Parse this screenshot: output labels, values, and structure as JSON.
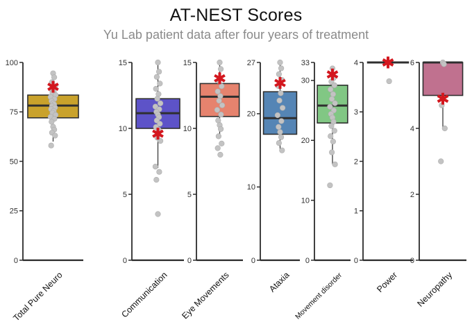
{
  "header": {
    "title": "AT-NEST Scores",
    "subtitle": "Yu Lab patient data after four years of treatment"
  },
  "chart_data": {
    "type": "boxplot",
    "title": "AT-NEST Scores",
    "subtitle": "Yu Lab patient data after four years of treatment",
    "legend": "none",
    "grid": false,
    "colors": {
      "asterisk": "#D3171E",
      "point_fill": "#C3C3C3",
      "point_stroke": "#ADADAD",
      "axis": "#2A2A2A",
      "box_border": "#2F2F2F",
      "tick_text": "#303030",
      "label_text": "#111111"
    },
    "panels": [
      {
        "label": "Total Pure Neuro",
        "fill": "#C9A22B",
        "ylim": [
          0,
          100
        ],
        "yticks": [
          0,
          25,
          50,
          75,
          100
        ],
        "q1": 72,
        "median": 78.2,
        "q3": 83.5,
        "whisker_low": 60,
        "whisker_high": 94,
        "asterisk": 87.7,
        "label_font_size": 12.5,
        "points": [
          94.5,
          92.5,
          90,
          88,
          86.5,
          85.5,
          84.5,
          83.5,
          82.5,
          81.5,
          80.5,
          79.5,
          78.8,
          78,
          77.2,
          76.4,
          75.5,
          74.5,
          73.5,
          72.5,
          71.5,
          70,
          67.5,
          66,
          64.5,
          63,
          58
        ]
      },
      {
        "label": "Communication",
        "fill": "#5D53C8",
        "ylim": [
          0,
          15
        ],
        "yticks": [
          0,
          5,
          10,
          15
        ],
        "q1": 10,
        "median": 11.15,
        "q3": 12.25,
        "whisker_low": 7,
        "whisker_high": 15,
        "asterisk": 9.6,
        "label_font_size": 12.5,
        "points": [
          15,
          14.3,
          13.9,
          13.4,
          13,
          12.6,
          12.25,
          11.9,
          11.65,
          11.45,
          11.25,
          11.05,
          10.85,
          10.6,
          10.35,
          10.1,
          9.9,
          9.3,
          9.05,
          7.1,
          6.7,
          6.1,
          3.5
        ]
      },
      {
        "label": "Eye Movements",
        "fill": "#E6836E",
        "ylim": [
          0,
          15
        ],
        "yticks": [
          0,
          5,
          10,
          15
        ],
        "q1": 10.9,
        "median": 12.4,
        "q3": 13.4,
        "whisker_low": 9.4,
        "whisker_high": 15,
        "asterisk": 13.8,
        "label_font_size": 12.5,
        "points": [
          15,
          14.5,
          13.6,
          13.2,
          12.8,
          12.45,
          12.1,
          11.75,
          11.4,
          11.05,
          10.6,
          10.25,
          9.95,
          9.4,
          8.85,
          8.5,
          8
        ]
      },
      {
        "label": "Ataxia",
        "fill": "#5585B5",
        "ylim": [
          0,
          27
        ],
        "yticks": [
          0,
          10,
          20,
          27
        ],
        "q1": 17.2,
        "median": 19.4,
        "q3": 23,
        "whisker_low": 15,
        "whisker_high": 27,
        "asterisk": 24.2,
        "label_font_size": 12.5,
        "points": [
          27,
          26.2,
          25.4,
          24.6,
          23.8,
          22.8,
          21.8,
          20.8,
          19.8,
          19,
          18.2,
          17.5,
          16.8,
          16,
          15
        ]
      },
      {
        "label": "Movement disorder",
        "fill": "#81C784",
        "ylim": [
          0,
          33
        ],
        "yticks": [
          0,
          10,
          20,
          30,
          33
        ],
        "q1": 22.9,
        "median": 25.8,
        "q3": 29.2,
        "whisker_low": 16,
        "whisker_high": 32,
        "asterisk": 31,
        "label_font_size": 10.5,
        "points": [
          32,
          30.4,
          29.8,
          29.2,
          28.5,
          27.7,
          26.9,
          26.2,
          25.6,
          25,
          24.4,
          23.8,
          23.1,
          22.4,
          21.6,
          20.7,
          19.8,
          18,
          16,
          12.5
        ]
      },
      {
        "label": "Power",
        "fill": "#FFFFFF",
        "ylim": [
          0,
          4
        ],
        "yticks": [
          0,
          1,
          2,
          3,
          4
        ],
        "q1": 4,
        "median": 4,
        "q3": 4,
        "whisker_low": 4,
        "whisker_high": 4,
        "asterisk": 4,
        "label_font_size": 12.5,
        "points": [
          4,
          3.62
        ]
      },
      {
        "label": "Neuropathy",
        "fill": "#C0718F",
        "ylim": [
          0,
          6
        ],
        "yticks": [
          0,
          2,
          4,
          6
        ],
        "q1": 5,
        "median": 6,
        "q3": 6,
        "whisker_low": 4,
        "whisker_high": 6,
        "asterisk": 4.9,
        "label_font_size": 12.5,
        "points": [
          6,
          5.95,
          4.7,
          4,
          3
        ]
      }
    ]
  }
}
